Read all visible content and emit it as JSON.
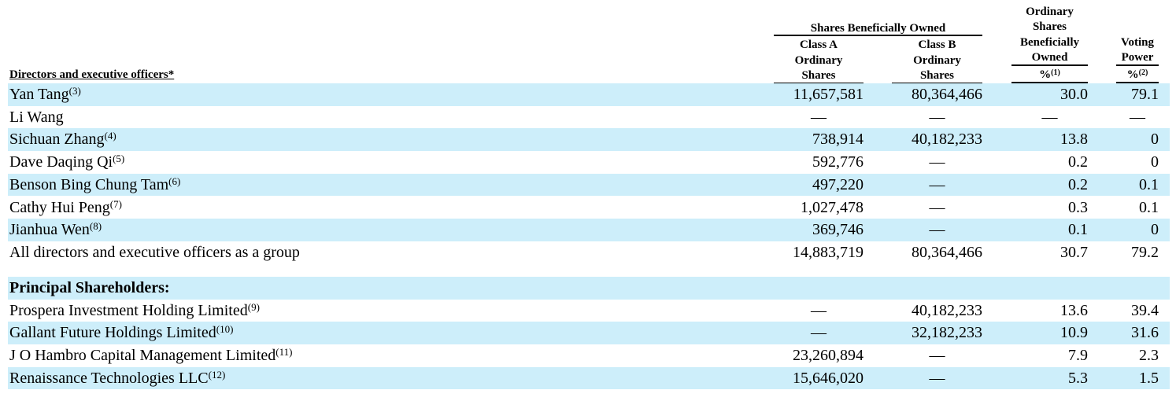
{
  "table": {
    "column_header": "Directors and executive officers*",
    "group_header": "Shares Beneficially Owned",
    "columns": [
      {
        "lines": [
          "Class A",
          "Ordinary",
          "Shares"
        ]
      },
      {
        "lines": [
          "Class B",
          "Ordinary",
          "Shares"
        ]
      },
      {
        "lines": [
          "Ordinary",
          "Shares",
          "Beneficially",
          "Owned"
        ],
        "unit": "%",
        "note": "(1)"
      },
      {
        "lines": [
          "Voting",
          "Power"
        ],
        "unit": "%",
        "note": "(2)"
      }
    ],
    "rows": [
      {
        "name": "Yan Tang",
        "note": "(3)",
        "cells": [
          "11,657,581",
          "80,364,466",
          "30.0",
          "79.1"
        ]
      },
      {
        "name": "Li Wang",
        "cells": [
          "—",
          "—",
          "—",
          "—"
        ]
      },
      {
        "name": "Sichuan Zhang",
        "note": "(4)",
        "cells": [
          "738,914",
          "40,182,233",
          "13.8",
          "0"
        ]
      },
      {
        "name": "Dave Daqing Qi",
        "note": "(5)",
        "cells": [
          "592,776",
          "—",
          "0.2",
          "0"
        ]
      },
      {
        "name": "Benson Bing Chung Tam",
        "note": "(6)",
        "cells": [
          "497,220",
          "—",
          "0.2",
          "0.1"
        ]
      },
      {
        "name": "Cathy Hui Peng",
        "note": "(7)",
        "cells": [
          "1,027,478",
          "—",
          "0.3",
          "0.1"
        ]
      },
      {
        "name": "Jianhua Wen",
        "note": "(8)",
        "cells": [
          "369,746",
          "—",
          "0.1",
          "0"
        ]
      },
      {
        "name": "All directors and executive officers as a group",
        "cells": [
          "14,883,719",
          "80,364,466",
          "30.7",
          "79.2"
        ]
      }
    ],
    "section": "Principal Shareholders:",
    "section_rows": [
      {
        "name": "Prospera Investment Holding Limited",
        "note": "(9)",
        "cells": [
          "—",
          "40,182,233",
          "13.6",
          "39.4"
        ]
      },
      {
        "name": "Gallant Future Holdings Limited",
        "note": "(10)",
        "cells": [
          "—",
          "32,182,233",
          "10.9",
          "31.6"
        ]
      },
      {
        "name": "J O Hambro Capital Management Limited",
        "note": "(11)",
        "cells": [
          "23,260,894",
          "—",
          "7.9",
          "2.3"
        ]
      },
      {
        "name": "Renaissance Technologies LLC",
        "note": "(12)",
        "cells": [
          "15,646,020",
          "—",
          "5.3",
          "1.5"
        ]
      }
    ]
  }
}
